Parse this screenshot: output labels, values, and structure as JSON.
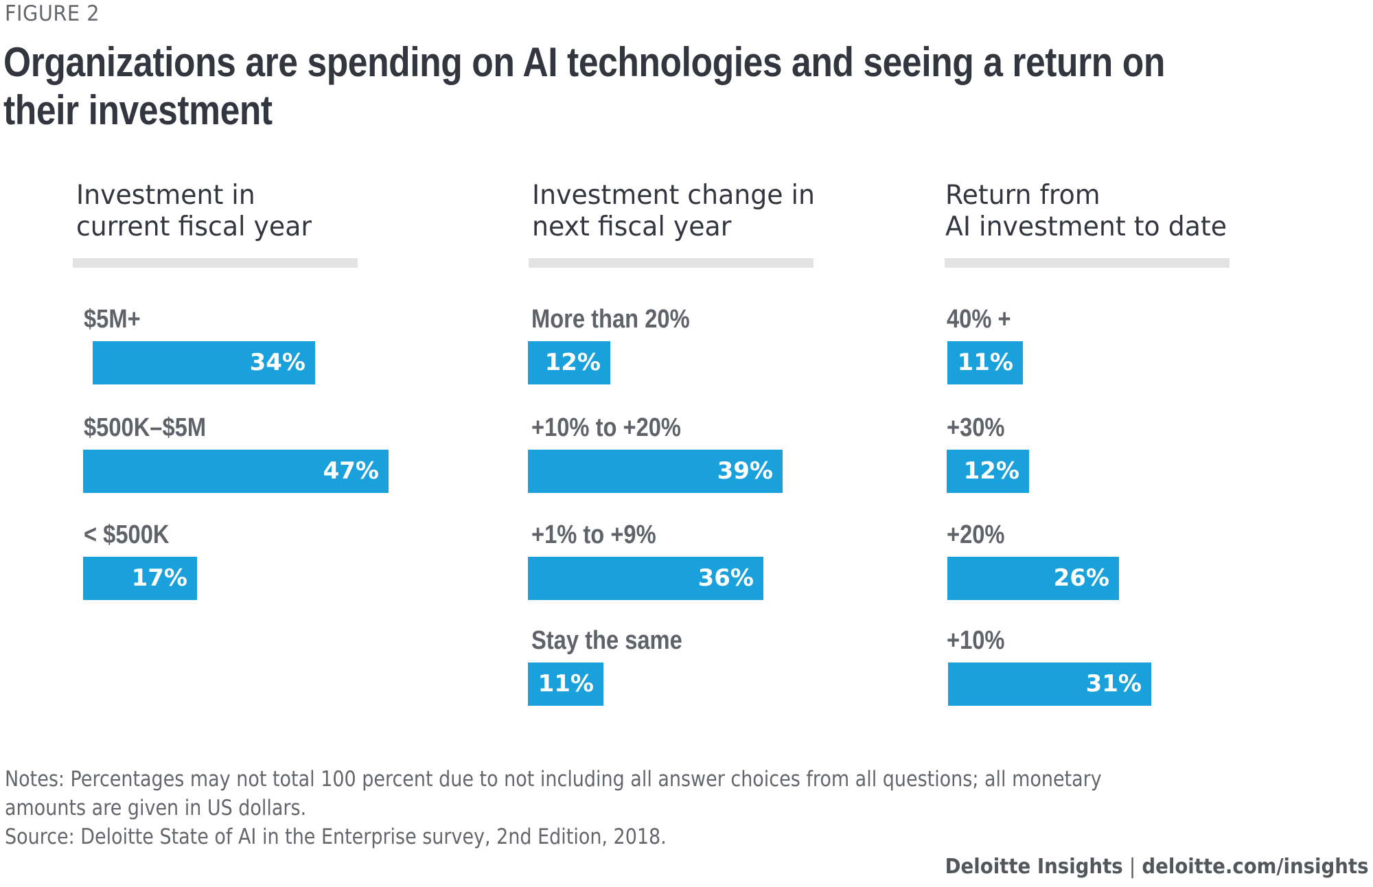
{
  "figure_label": "FIGURE 2",
  "title_lines": [
    "Organizations are spending on AI technologies and seeing a return on",
    "their investment"
  ],
  "colors": {
    "bar": "#1aa1db",
    "divider": "#e3e3e3",
    "title": "#33363f",
    "label": "#5f6268"
  },
  "chart_data": [
    {
      "type": "bar",
      "orientation": "horizontal",
      "title": "Investment in current fiscal year",
      "title_lines": [
        "Investment in",
        "current fiscal year"
      ],
      "categories": [
        "$5M+",
        "$500K–$5M",
        "< $500K"
      ],
      "values": [
        34,
        47,
        17
      ],
      "value_labels": [
        "34%",
        "47%",
        "17%"
      ],
      "unit": "%",
      "xlim": [
        0,
        100
      ]
    },
    {
      "type": "bar",
      "orientation": "horizontal",
      "title": "Investment change in next fiscal year",
      "title_lines": [
        "Investment change in",
        "next fiscal year"
      ],
      "categories": [
        "More than 20%",
        "+10% to +20%",
        "+1% to +9%",
        "Stay the same"
      ],
      "values": [
        12,
        39,
        36,
        11
      ],
      "value_labels": [
        "12%",
        "39%",
        "36%",
        "11%"
      ],
      "unit": "%",
      "xlim": [
        0,
        100
      ]
    },
    {
      "type": "bar",
      "orientation": "horizontal",
      "title": "Return from AI investment to date",
      "title_lines": [
        "Return from",
        "AI investment to date"
      ],
      "categories": [
        "40% +",
        "+30%",
        "+20%",
        "+10%"
      ],
      "values": [
        11,
        12,
        26,
        31
      ],
      "value_labels": [
        "11%",
        "12%",
        "26%",
        "31%"
      ],
      "unit": "%",
      "xlim": [
        0,
        100
      ]
    }
  ],
  "notes": {
    "line1": "Notes: Percentages may not total 100 percent due to not including all answer choices from all questions; all monetary",
    "line2": "amounts are given in US dollars.",
    "source": "Source: Deloitte State of AI in the Enterprise survey, 2nd Edition, 2018."
  },
  "footer": {
    "brand": "Deloitte Insights",
    "separator": "|",
    "url": "deloitte.com/insights"
  }
}
